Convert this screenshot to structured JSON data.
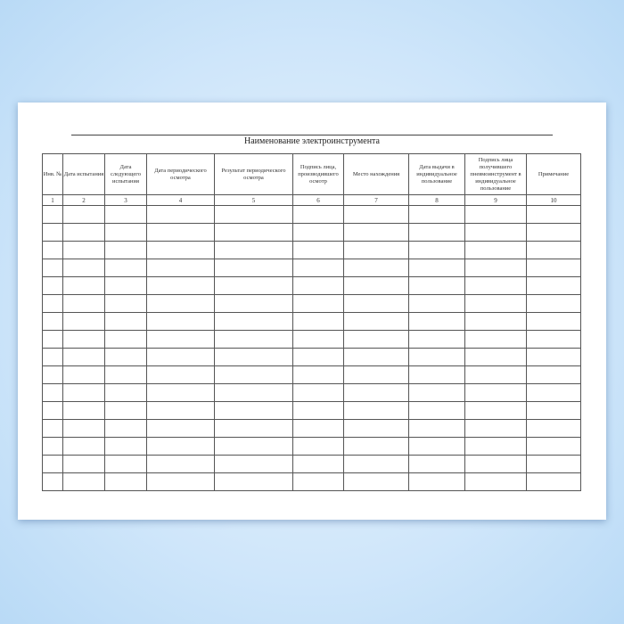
{
  "title": "Наименование электроинструмента",
  "headers": [
    "Инв. №",
    "Дата испытания",
    "Дата следующего испытания",
    "Дата периодического осмотра",
    "Результат периодического осмотра",
    "Подпись лица, производившего осмотр",
    "Место нахождения",
    "Дата выдачи в индивидуальное пользование",
    "Подпись лица получившего пневмоинструмент в индивидуальное пользование",
    "Примечание"
  ],
  "numbers": [
    "1",
    "2",
    "3",
    "4",
    "5",
    "6",
    "7",
    "8",
    "9",
    "10"
  ],
  "empty_rows": 16
}
